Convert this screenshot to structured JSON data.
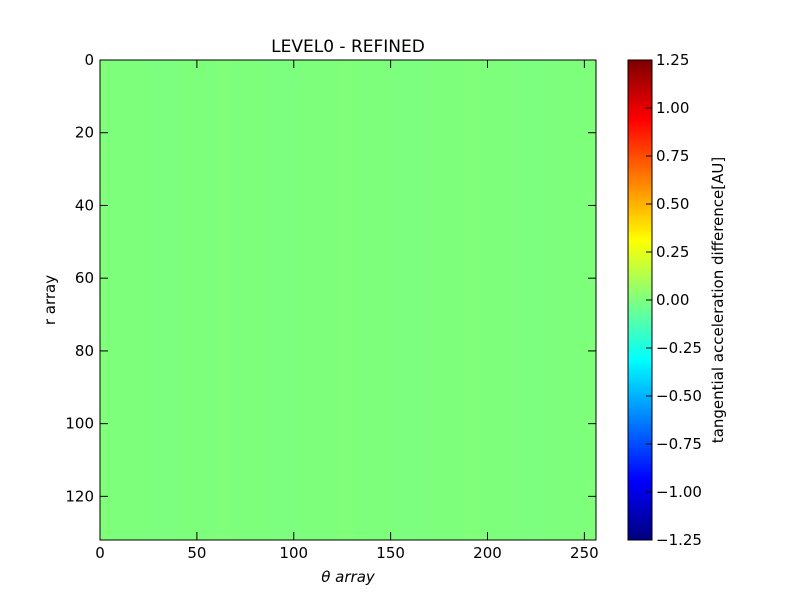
{
  "chart_data": {
    "type": "heatmap",
    "title": "LEVEL0 - REFINED",
    "xlabel": "θ array",
    "ylabel": "r array",
    "xlim": [
      0,
      256
    ],
    "ylim": [
      132,
      0
    ],
    "x_ticks": [
      0,
      50,
      100,
      150,
      200,
      250
    ],
    "y_ticks": [
      0,
      20,
      40,
      60,
      80,
      100,
      120
    ],
    "colormap": "jet",
    "colorbar": {
      "label": "tangential acceleration difference[AU]",
      "range": [
        -1.25,
        1.25
      ],
      "ticks": [
        1.25,
        1.0,
        0.75,
        0.5,
        0.25,
        0.0,
        -0.25,
        -0.5,
        -0.75,
        -1.0,
        -1.25
      ],
      "tick_labels": [
        "1.25",
        "1.00",
        "0.75",
        "0.50",
        "0.25",
        "0.00",
        "−0.25",
        "−0.50",
        "−0.75",
        "−1.00",
        "−1.25"
      ]
    },
    "field": {
      "description_value": "approximately uniform near 0.0",
      "value_range": [
        -0.02,
        0.02
      ],
      "stripe_period_theta": 64
    },
    "grid": false
  },
  "colors": {
    "field_base": "#7fff7a",
    "jet_stops": [
      "#00007f",
      "#0000ff",
      "#007fff",
      "#00ffff",
      "#7fff7f",
      "#ffff00",
      "#ff7f00",
      "#ff0000",
      "#7f0000"
    ]
  }
}
